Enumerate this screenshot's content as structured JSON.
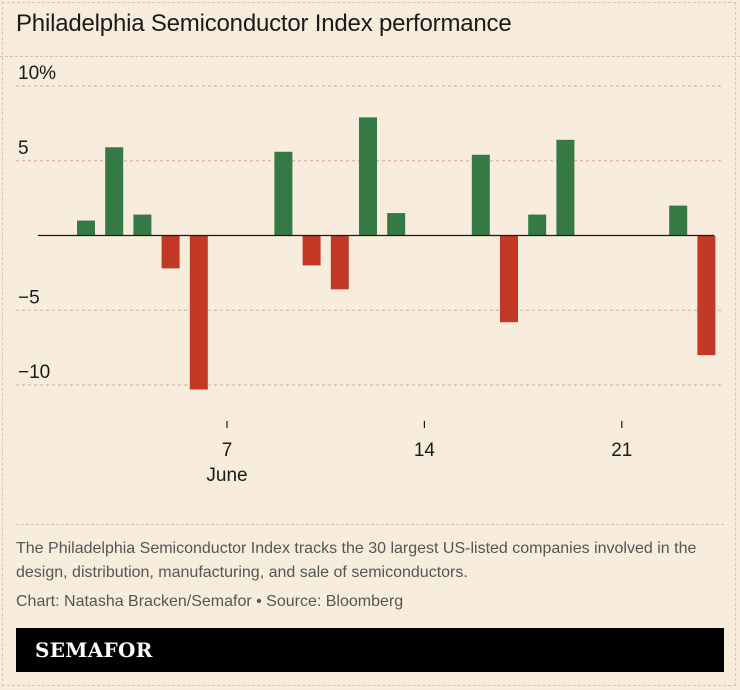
{
  "title": "Philadelphia Semiconductor Index performance",
  "description": "The Philadelphia Semiconductor Index tracks the 30 largest US-listed companies involved in the design, distribution, manufacturing, and sale of semiconductors.",
  "credit": "Chart: Natasha Bracken/Semafor • Source: Bloomberg",
  "brand": "SEMAFOR",
  "colors": {
    "positive": "#357a45",
    "negative": "#c23a25",
    "background": "#f8ecdc",
    "gridline": "#d9a89c"
  },
  "chart_data": {
    "type": "bar",
    "xlabel": "",
    "ylabel": "",
    "ylim": [
      -10,
      10
    ],
    "y_ticks": [
      {
        "value": 10,
        "label": "10%"
      },
      {
        "value": 5,
        "label": "5"
      },
      {
        "value": -5,
        "label": "−5"
      },
      {
        "value": -10,
        "label": "−10"
      }
    ],
    "x_domain": [
      1,
      23
    ],
    "x_ticks": [
      {
        "value": 7,
        "label": "7",
        "sublabel": "June"
      },
      {
        "value": 14,
        "label": "14",
        "sublabel": ""
      },
      {
        "value": 21,
        "label": "21",
        "sublabel": ""
      }
    ],
    "grid": true,
    "legend": "none",
    "x": [
      2,
      3,
      4,
      5,
      6,
      9,
      10,
      11,
      12,
      13,
      16,
      17,
      18,
      19,
      23,
      24
    ],
    "values": [
      1.0,
      5.9,
      1.4,
      -2.2,
      -10.3,
      5.6,
      -2.0,
      -3.6,
      7.9,
      1.5,
      5.4,
      -5.8,
      1.4,
      6.4,
      2.0,
      -8.0
    ]
  }
}
